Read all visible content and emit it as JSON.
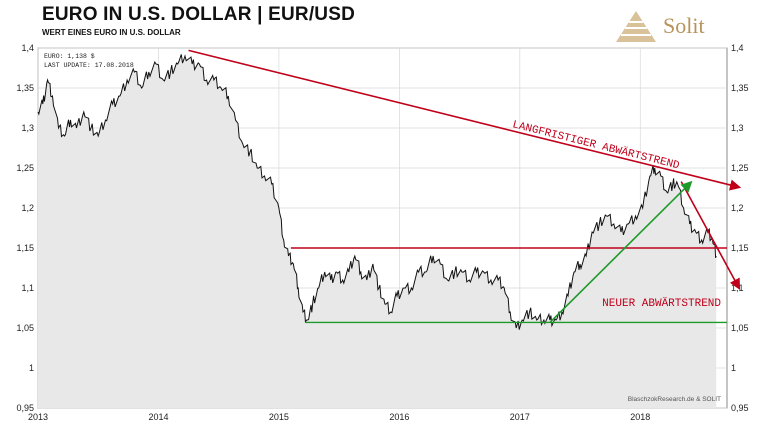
{
  "header": {
    "title": "EURO IN U.S. DOLLAR | EUR/USD",
    "subtitle": "WERT EINES EURO IN U.S. DOLLAR"
  },
  "logo": {
    "text": "Solit",
    "icon": "pyramid-icon",
    "color": "#b8935a"
  },
  "chart_data": {
    "type": "line",
    "info_lines": [
      "EURO: 1,138 $",
      "LAST UPDATE: 17.08.2018"
    ],
    "credit": "BlaschzokResearch.de & SOLIT",
    "x_ticks": [
      "2013",
      "2014",
      "2015",
      "2016",
      "2017",
      "2018"
    ],
    "y_ticks": [
      "0,95",
      "1",
      "1,05",
      "1,1",
      "1,15",
      "1,2",
      "1,25",
      "1,3",
      "1,35",
      "1,4"
    ],
    "ylim": [
      0.95,
      1.4
    ],
    "xlim": [
      2013.0,
      2018.72
    ],
    "grid": true,
    "series": [
      {
        "color": "#111111",
        "fill": "#e8e8e8",
        "x": [
          2013.0,
          2013.04,
          2013.08,
          2013.12,
          2013.17,
          2013.22,
          2013.27,
          2013.32,
          2013.38,
          2013.44,
          2013.5,
          2013.56,
          2013.62,
          2013.68,
          2013.74,
          2013.8,
          2013.86,
          2013.92,
          2013.98,
          2014.04,
          2014.1,
          2014.16,
          2014.22,
          2014.28,
          2014.34,
          2014.4,
          2014.46,
          2014.52,
          2014.58,
          2014.64,
          2014.7,
          2014.76,
          2014.82,
          2014.88,
          2014.94,
          2015.0,
          2015.04,
          2015.08,
          2015.12,
          2015.16,
          2015.2,
          2015.24,
          2015.28,
          2015.33,
          2015.38,
          2015.43,
          2015.48,
          2015.53,
          2015.58,
          2015.63,
          2015.68,
          2015.73,
          2015.78,
          2015.83,
          2015.88,
          2015.93,
          2015.98,
          2016.04,
          2016.1,
          2016.16,
          2016.22,
          2016.28,
          2016.34,
          2016.4,
          2016.46,
          2016.52,
          2016.58,
          2016.64,
          2016.7,
          2016.76,
          2016.82,
          2016.87,
          2016.92,
          2016.97,
          2017.02,
          2017.08,
          2017.14,
          2017.2,
          2017.25,
          2017.3,
          2017.35,
          2017.4,
          2017.45,
          2017.5,
          2017.55,
          2017.6,
          2017.66,
          2017.72,
          2017.78,
          2017.84,
          2017.9,
          2017.96,
          2018.02,
          2018.08,
          2018.12,
          2018.17,
          2018.22,
          2018.27,
          2018.31,
          2018.36,
          2018.41,
          2018.46,
          2018.51,
          2018.56,
          2018.6,
          2018.63
        ],
        "y": [
          1.32,
          1.33,
          1.36,
          1.34,
          1.3,
          1.29,
          1.31,
          1.3,
          1.32,
          1.3,
          1.29,
          1.31,
          1.33,
          1.34,
          1.36,
          1.37,
          1.35,
          1.37,
          1.38,
          1.36,
          1.37,
          1.38,
          1.39,
          1.38,
          1.38,
          1.36,
          1.36,
          1.35,
          1.34,
          1.31,
          1.28,
          1.27,
          1.25,
          1.24,
          1.23,
          1.2,
          1.16,
          1.14,
          1.13,
          1.1,
          1.07,
          1.06,
          1.08,
          1.1,
          1.12,
          1.11,
          1.12,
          1.11,
          1.12,
          1.14,
          1.12,
          1.11,
          1.13,
          1.1,
          1.08,
          1.07,
          1.09,
          1.1,
          1.1,
          1.12,
          1.12,
          1.14,
          1.13,
          1.11,
          1.12,
          1.12,
          1.11,
          1.12,
          1.12,
          1.11,
          1.11,
          1.1,
          1.07,
          1.05,
          1.06,
          1.07,
          1.06,
          1.06,
          1.06,
          1.06,
          1.07,
          1.09,
          1.12,
          1.13,
          1.14,
          1.17,
          1.18,
          1.19,
          1.18,
          1.17,
          1.18,
          1.19,
          1.2,
          1.24,
          1.25,
          1.24,
          1.22,
          1.23,
          1.23,
          1.2,
          1.18,
          1.17,
          1.16,
          1.17,
          1.16,
          1.14
        ]
      }
    ],
    "annotations": [
      {
        "label": "LANGFRISTIGER ABWÄRTSTREND",
        "color": "#c0001a",
        "type": "trend_arrow",
        "from": [
          2014.25,
          1.397
        ],
        "to": [
          2018.72,
          1.226
        ]
      },
      {
        "label": "NEUER ABWÄRTSTREND",
        "color": "#c0001a",
        "type": "trend_arrow",
        "from": [
          2018.34,
          1.233
        ],
        "to": [
          2018.72,
          1.1
        ]
      },
      {
        "label": "",
        "color": "#c0001a",
        "type": "hline",
        "from": [
          2015.1,
          1.15
        ],
        "to": [
          2018.72,
          1.15
        ]
      },
      {
        "label": "",
        "color": "#1e9a2a",
        "type": "hline",
        "from": [
          2015.22,
          1.057
        ],
        "to": [
          2018.72,
          1.057
        ]
      },
      {
        "label": "",
        "color": "#1e9a2a",
        "type": "trend_arrow",
        "from": [
          2017.25,
          1.057
        ],
        "to": [
          2018.32,
          1.232
        ]
      }
    ]
  }
}
